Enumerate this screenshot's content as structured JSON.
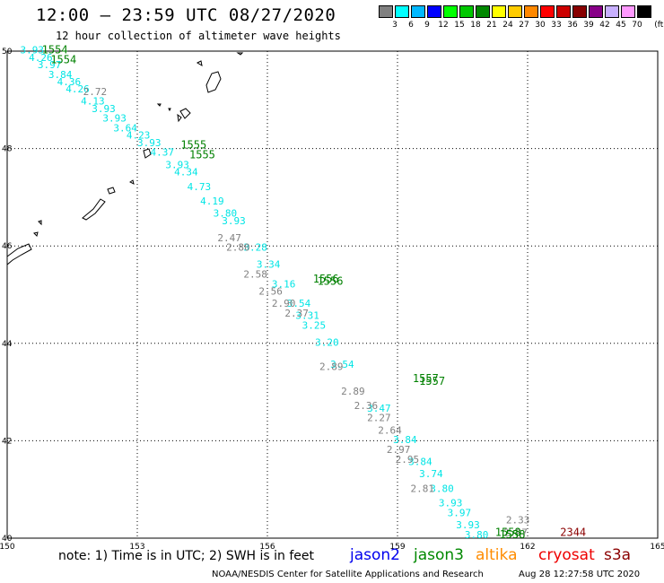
{
  "header": {
    "title": "12:00 – 23:59 UTC 08/27/2020",
    "subtitle": "12 hour collection of altimeter wave heights"
  },
  "scale": {
    "unit": "(ft)",
    "bins": [
      {
        "label": "3",
        "color": "#808080"
      },
      {
        "label": "6",
        "color": "#00ffff"
      },
      {
        "label": "9",
        "color": "#00b8ff"
      },
      {
        "label": "12",
        "color": "#0000ff"
      },
      {
        "label": "15",
        "color": "#00ff00"
      },
      {
        "label": "18",
        "color": "#00c800"
      },
      {
        "label": "21",
        "color": "#008800"
      },
      {
        "label": "24",
        "color": "#ffff00"
      },
      {
        "label": "27",
        "color": "#ffcc00"
      },
      {
        "label": "30",
        "color": "#ff8800"
      },
      {
        "label": "33",
        "color": "#ff0000"
      },
      {
        "label": "36",
        "color": "#cc0000"
      },
      {
        "label": "39",
        "color": "#880000"
      },
      {
        "label": "42",
        "color": "#880088"
      },
      {
        "label": "45",
        "color": "#c8b0ff"
      },
      {
        "label": "70",
        "color": "#ff99ff"
      },
      {
        "label": "",
        "color": "#000000"
      }
    ]
  },
  "map": {
    "lon_range": [
      150,
      165
    ],
    "lat_range": [
      40,
      50
    ],
    "x_ticks": [
      {
        "value": 150,
        "label": "150"
      },
      {
        "value": 153,
        "label": "153"
      },
      {
        "value": 156,
        "label": "156"
      },
      {
        "value": 159,
        "label": "159"
      },
      {
        "value": 162,
        "label": "162"
      },
      {
        "value": 165,
        "label": "165"
      }
    ],
    "y_ticks": [
      {
        "value": 50,
        "label": "50"
      },
      {
        "value": 48,
        "label": "48"
      },
      {
        "value": 46,
        "label": "46"
      },
      {
        "value": 44,
        "label": "44"
      },
      {
        "value": 42,
        "label": "42"
      },
      {
        "value": 40,
        "label": "40"
      }
    ],
    "grid": "dotted",
    "track_colors": {
      "low": "#00e5e5",
      "mid": "#808080",
      "time": "#008000",
      "s3a": "#8b0000"
    },
    "track_cyan": [
      {
        "lon": 150.3,
        "lat": 49.95,
        "text": "3.93"
      },
      {
        "lon": 150.5,
        "lat": 49.8,
        "text": "4.26"
      },
      {
        "lon": 150.7,
        "lat": 49.65,
        "text": "3.97"
      },
      {
        "lon": 150.95,
        "lat": 49.45,
        "text": "3.84"
      },
      {
        "lon": 151.15,
        "lat": 49.3,
        "text": "4.36"
      },
      {
        "lon": 151.35,
        "lat": 49.15,
        "text": "4.26"
      },
      {
        "lon": 151.7,
        "lat": 48.9,
        "text": "4.13"
      },
      {
        "lon": 151.95,
        "lat": 48.75,
        "text": "3.93"
      },
      {
        "lon": 152.2,
        "lat": 48.55,
        "text": "3.93"
      },
      {
        "lon": 152.45,
        "lat": 48.35,
        "text": "3.64"
      },
      {
        "lon": 152.75,
        "lat": 48.2,
        "text": "4.23"
      },
      {
        "lon": 153.0,
        "lat": 48.05,
        "text": "3.93"
      },
      {
        "lon": 153.3,
        "lat": 47.85,
        "text": "4.37"
      },
      {
        "lon": 153.65,
        "lat": 47.6,
        "text": "3.93"
      },
      {
        "lon": 153.85,
        "lat": 47.45,
        "text": "4.34"
      },
      {
        "lon": 154.15,
        "lat": 47.15,
        "text": "4.73"
      },
      {
        "lon": 154.45,
        "lat": 46.85,
        "text": "4.19"
      },
      {
        "lon": 154.75,
        "lat": 46.6,
        "text": "3.80"
      },
      {
        "lon": 154.95,
        "lat": 46.45,
        "text": "3.93"
      },
      {
        "lon": 155.45,
        "lat": 45.9,
        "text": "3.28"
      },
      {
        "lon": 155.75,
        "lat": 45.55,
        "text": "3.34"
      },
      {
        "lon": 156.1,
        "lat": 45.15,
        "text": "3.16"
      },
      {
        "lon": 156.45,
        "lat": 44.75,
        "text": "3.54"
      },
      {
        "lon": 156.65,
        "lat": 44.5,
        "text": "3.31"
      },
      {
        "lon": 156.8,
        "lat": 44.3,
        "text": "3.25"
      },
      {
        "lon": 157.1,
        "lat": 43.95,
        "text": "3.20"
      },
      {
        "lon": 157.45,
        "lat": 43.5,
        "text": "3.54"
      },
      {
        "lon": 158.3,
        "lat": 42.6,
        "text": "3.47"
      },
      {
        "lon": 158.9,
        "lat": 41.95,
        "text": "3.84"
      },
      {
        "lon": 159.25,
        "lat": 41.5,
        "text": "3.84"
      },
      {
        "lon": 159.5,
        "lat": 41.25,
        "text": "3.74"
      },
      {
        "lon": 159.75,
        "lat": 40.95,
        "text": "3.80"
      },
      {
        "lon": 159.95,
        "lat": 40.65,
        "text": "3.93"
      },
      {
        "lon": 160.15,
        "lat": 40.45,
        "text": "3.97"
      },
      {
        "lon": 160.35,
        "lat": 40.2,
        "text": "3.93"
      },
      {
        "lon": 160.55,
        "lat": 40.0,
        "text": "3.80"
      }
    ],
    "track_gray": [
      {
        "lon": 151.75,
        "lat": 49.1,
        "text": "2.72"
      },
      {
        "lon": 154.85,
        "lat": 46.1,
        "text": "2.47"
      },
      {
        "lon": 155.05,
        "lat": 45.9,
        "text": "2.80"
      },
      {
        "lon": 155.45,
        "lat": 45.35,
        "text": "2.58"
      },
      {
        "lon": 155.8,
        "lat": 45.0,
        "text": "2.56"
      },
      {
        "lon": 156.1,
        "lat": 44.75,
        "text": "2.90"
      },
      {
        "lon": 156.4,
        "lat": 44.55,
        "text": "2.37"
      },
      {
        "lon": 157.2,
        "lat": 43.45,
        "text": "2.89"
      },
      {
        "lon": 157.7,
        "lat": 42.95,
        "text": "2.89"
      },
      {
        "lon": 158.0,
        "lat": 42.65,
        "text": "2.36"
      },
      {
        "lon": 158.3,
        "lat": 42.4,
        "text": "2.27"
      },
      {
        "lon": 158.55,
        "lat": 42.15,
        "text": "2.64"
      },
      {
        "lon": 158.75,
        "lat": 41.75,
        "text": "2.97"
      },
      {
        "lon": 158.95,
        "lat": 41.55,
        "text": "2.95"
      },
      {
        "lon": 159.3,
        "lat": 40.95,
        "text": "2.81"
      },
      {
        "lon": 161.5,
        "lat": 40.3,
        "text": "2.33"
      },
      {
        "lon": 161.45,
        "lat": 40.05,
        "text": "2.97"
      }
    ],
    "pass_times": [
      {
        "lon": 150.8,
        "lat": 49.95,
        "text": "1554"
      },
      {
        "lon": 151.0,
        "lat": 49.75,
        "text": "1554"
      },
      {
        "lon": 154.0,
        "lat": 48.0,
        "text": "1555"
      },
      {
        "lon": 154.2,
        "lat": 47.8,
        "text": "1555"
      },
      {
        "lon": 157.05,
        "lat": 45.25,
        "text": "1556"
      },
      {
        "lon": 157.15,
        "lat": 45.2,
        "text": "1556"
      },
      {
        "lon": 159.35,
        "lat": 43.2,
        "text": "1557"
      },
      {
        "lon": 159.5,
        "lat": 43.15,
        "text": "1557"
      },
      {
        "lon": 161.25,
        "lat": 40.05,
        "text": "1558"
      },
      {
        "lon": 161.35,
        "lat": 40.0,
        "text": "1558"
      }
    ],
    "s3a_values": [
      {
        "lon": 162.75,
        "lat": 40.05,
        "text": "2344"
      }
    ]
  },
  "footer": {
    "note": "note:  1) Time is in UTC;  2) SWH is in feet",
    "satellites": [
      {
        "label": "jason2",
        "color": "#0000ee"
      },
      {
        "label": "jason3",
        "color": "#008800"
      },
      {
        "label": "altika",
        "color": "#ff8c00"
      },
      {
        "label": "cryosat",
        "color": "#ee0000"
      },
      {
        "label": "s3a",
        "color": "#8b0000"
      }
    ],
    "credit": "NOAA/NESDIS Center for Satellite Applications and Research",
    "timestamp": "Aug 28 12:27:58 UTC 2020"
  }
}
